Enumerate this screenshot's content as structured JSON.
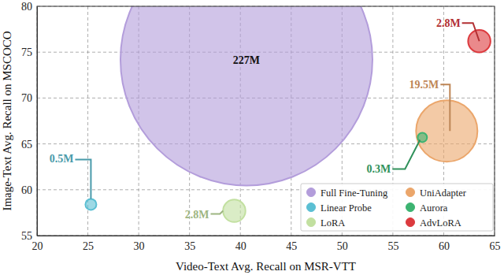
{
  "chart_data": {
    "type": "scatter",
    "xlabel": "Video-Text Avg. Recall on MSR-VTT",
    "ylabel": "Image-Text Avg. Recall on MSCOCO",
    "xlim": [
      20,
      65
    ],
    "ylim": [
      55,
      80
    ],
    "xticks": [
      20,
      25,
      30,
      35,
      40,
      45,
      50,
      55,
      60,
      65
    ],
    "yticks": [
      55,
      60,
      65,
      70,
      75,
      80
    ],
    "grid": true,
    "legend": "lower right",
    "marker": "circle",
    "series": [
      {
        "name": "Full Fine-Tuning",
        "color": "#b39ddb",
        "x": [
          40.6
        ],
        "values": [
          74.2
        ],
        "sizes": [
          227
        ],
        "size_labels": [
          "227M"
        ]
      },
      {
        "name": "Linear Probe",
        "color": "#5bbfd3",
        "x": [
          25.3
        ],
        "values": [
          58.4
        ],
        "sizes": [
          0.5
        ],
        "size_labels": [
          "0.5M"
        ]
      },
      {
        "name": "LoRA",
        "color": "#c2e0a0",
        "x": [
          39.4
        ],
        "values": [
          57.7
        ],
        "sizes": [
          2.8
        ],
        "size_labels": [
          "2.8M"
        ]
      },
      {
        "name": "UniAdapter",
        "color": "#eba66b",
        "x": [
          60.3
        ],
        "values": [
          66.4
        ],
        "sizes": [
          19.5
        ],
        "size_labels": [
          "19.5M"
        ]
      },
      {
        "name": "Aurora",
        "color": "#3cb371",
        "x": [
          57.9
        ],
        "values": [
          65.7
        ],
        "sizes": [
          0.3
        ],
        "size_labels": [
          "0.3M"
        ]
      },
      {
        "name": "AdvLoRA",
        "color": "#dc3a3e",
        "x": [
          63.5
        ],
        "values": [
          76.2
        ],
        "sizes": [
          2.8
        ],
        "size_labels": [
          "2.8M"
        ]
      }
    ]
  }
}
